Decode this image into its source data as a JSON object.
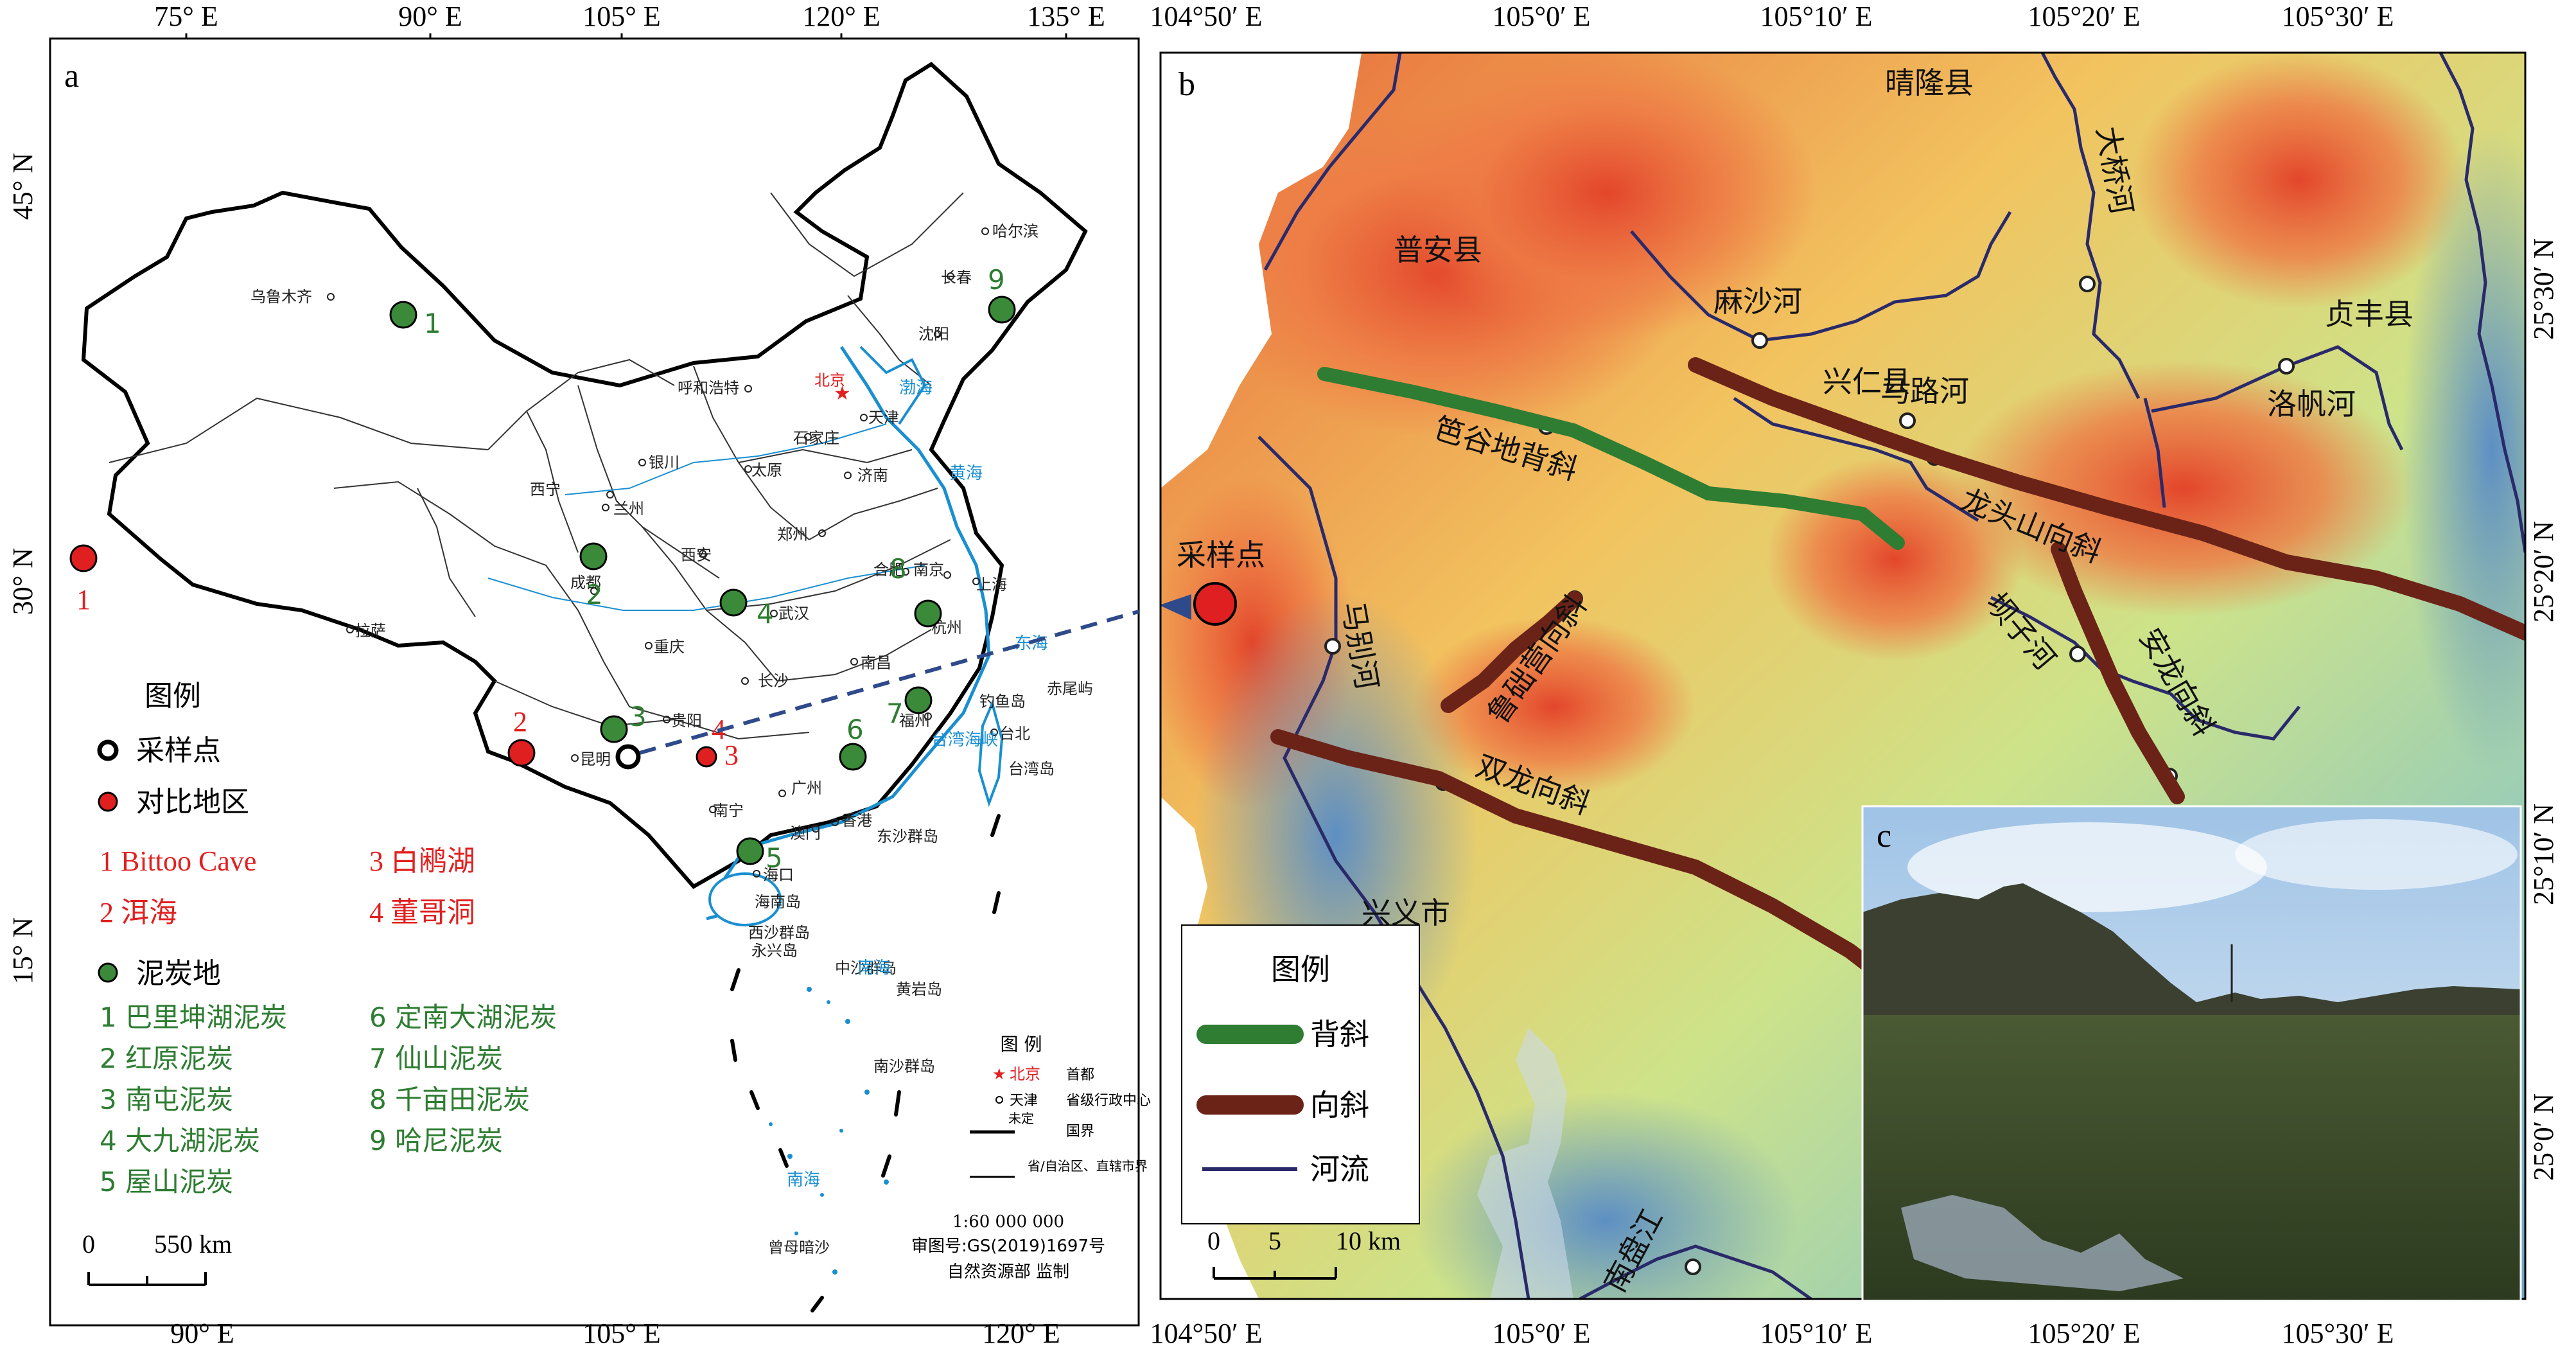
{
  "panel_a": {
    "label": "a",
    "top_ticks": [
      "75° E",
      "90° E",
      "105° E",
      "120° E",
      "135° E"
    ],
    "bottom_ticks": [
      "90° E",
      "105° E",
      "120° E"
    ],
    "left_ticks": [
      "45° N",
      "30° N",
      "15° N"
    ],
    "cities": [
      "乌鲁木齐",
      "哈尔滨",
      "长春",
      "沈阳",
      "呼和浩特",
      "北京",
      "天津",
      "石家庄",
      "银川",
      "太原",
      "济南",
      "西宁",
      "兰州",
      "郑州",
      "西安",
      "合肥",
      "南京",
      "上海",
      "成都",
      "武汉",
      "杭州",
      "拉萨",
      "重庆",
      "南昌",
      "长沙",
      "福州",
      "贵阳",
      "昆明",
      "台北",
      "南宁",
      "广州",
      "香港",
      "澳门",
      "海口",
      "赤尾屿",
      "钓鱼岛",
      "台湾岛",
      "海南岛",
      "东沙群岛",
      "西沙群岛",
      "永兴岛",
      "中沙群岛",
      "黄岩岛",
      "南沙群岛",
      "曾母暗沙"
    ],
    "seas": [
      "渤海",
      "黄海",
      "东海",
      "南海",
      "台湾海峡",
      "南海"
    ],
    "sites": {
      "comparison": [
        {
          "num": "1"
        },
        {
          "num": "2"
        },
        {
          "num": "3"
        },
        {
          "num": "4"
        }
      ],
      "peat": [
        {
          "num": "1"
        },
        {
          "num": "2"
        },
        {
          "num": "3"
        },
        {
          "num": "4"
        },
        {
          "num": "5"
        },
        {
          "num": "6"
        },
        {
          "num": "7"
        },
        {
          "num": "8"
        },
        {
          "num": "9"
        }
      ]
    },
    "legend": {
      "title": "图例",
      "sampling_point": "采样点",
      "comparison_area": "对比地区",
      "comparison_items": [
        "1 Bittoo Cave",
        "2 洱海",
        "3 白鹇湖",
        "4 董哥洞"
      ],
      "peat_label": "泥炭地",
      "peat_items": [
        "1 巴里坤湖泥炭",
        "2 红原泥炭",
        "3 南屯泥炭",
        "4 大九湖泥炭",
        "5 屋山泥炭",
        "6 定南大湖泥炭",
        "7 仙山泥炭",
        "8 千亩田泥炭",
        "9 哈尼泥炭"
      ]
    },
    "inset_legend": {
      "title": "图 例",
      "rows": [
        {
          "key": "北京",
          "desc": "首都"
        },
        {
          "key": "天津",
          "desc": "省级行政中心"
        },
        {
          "key": "未定",
          "desc": "国界"
        },
        {
          "key": "",
          "desc": "省/自治区、直辖市界"
        }
      ],
      "scale": "1:60 000 000",
      "review_no": "审图号:GS(2019)1697号",
      "supervisor": "自然资源部  监制"
    },
    "scalebar": {
      "zero": "0",
      "label": "550 km"
    },
    "colors": {
      "comparison": "#e02020",
      "peat": "#3a8a3a",
      "sea": "#1a8fd0"
    }
  },
  "panel_b": {
    "label": "b",
    "top_ticks": [
      "104°50′ E",
      "105°0′ E",
      "105°10′ E",
      "105°20′ E",
      "105°30′ E"
    ],
    "bottom_ticks": [
      "104°50′ E",
      "105°0′ E",
      "105°10′ E",
      "105°20′ E",
      "105°30′ E"
    ],
    "right_ticks": [
      "25°30′ N",
      "25°20′ N",
      "25°10′ N",
      "25°0′ N"
    ],
    "places": [
      "晴隆县",
      "普安县",
      "兴仁县",
      "贞丰县",
      "兴义市",
      "采样点"
    ],
    "rivers": [
      "麻沙河",
      "大桥河",
      "马路河",
      "洛帆河",
      "马别河",
      "坝子河",
      "南盘江"
    ],
    "structures": [
      "笆谷地背斜",
      "龙头山向斜",
      "鲁础营向斜",
      "安龙向斜",
      "双龙向斜"
    ],
    "legend": {
      "title": "图例",
      "anticline": "背斜",
      "syncline": "向斜",
      "river": "河流"
    },
    "scalebar": {
      "ticks": [
        "0",
        "5",
        "10 km"
      ]
    },
    "colors": {
      "anticline": "#2e7d32",
      "syncline": "#6b2318",
      "river": "#2a2a6a",
      "sample": "#e02020"
    }
  },
  "panel_c": {
    "label": "c"
  }
}
